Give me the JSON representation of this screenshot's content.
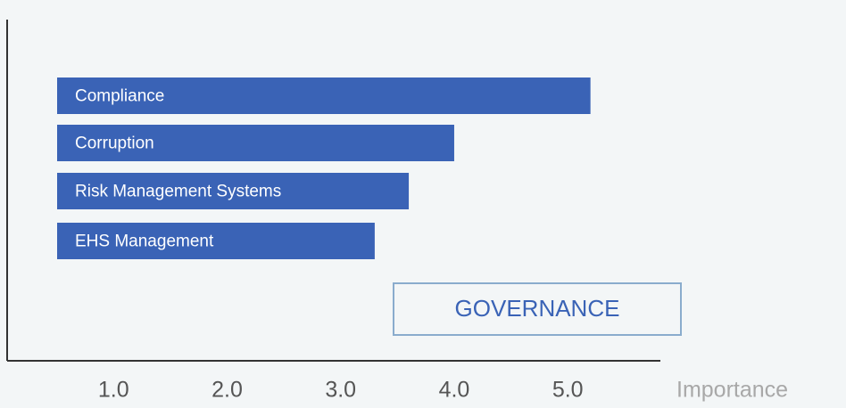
{
  "chart_data": {
    "type": "bar",
    "orientation": "horizontal",
    "categories": [
      "Compliance",
      "Corruption",
      "Risk Management Systems",
      "EHS Management"
    ],
    "values": [
      5.2,
      4.0,
      3.6,
      3.3
    ],
    "color": "#3a63b6",
    "xlim": [
      0,
      5.8
    ],
    "xticks": [
      {
        "value": 1,
        "label": "1.0"
      },
      {
        "value": 2,
        "label": "2.0"
      },
      {
        "value": 3,
        "label": "3.0"
      },
      {
        "value": 4,
        "label": "4.0"
      },
      {
        "value": 5,
        "label": "5.0"
      }
    ],
    "x_label": "Importance",
    "annotation": "GOVERNANCE"
  }
}
